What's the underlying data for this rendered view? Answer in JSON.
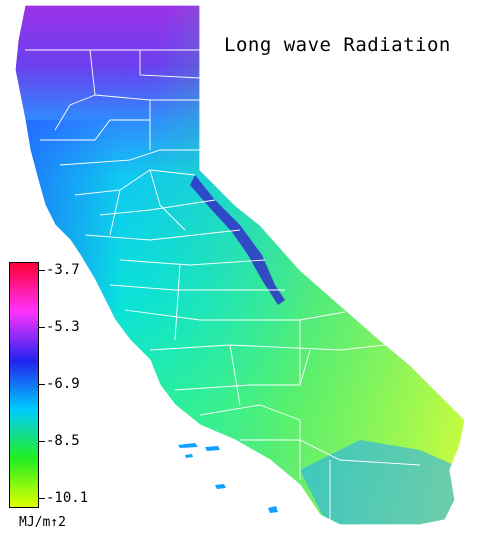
{
  "title": "Long wave Radiation",
  "legend": {
    "units": "MJ/m↑2",
    "ticks": [
      "-3.7",
      "-5.3",
      "-6.9",
      "-8.5",
      "-10.1"
    ],
    "colors": [
      "#ff0033",
      "#ff33ff",
      "#2222ee",
      "#00ccff",
      "#22ee22",
      "#ddff00"
    ]
  },
  "map": {
    "region": "California counties",
    "palette": {
      "north": "#8833ee",
      "northwest": "#6644ee",
      "central": "#00d8ee",
      "coast": "#2299ff",
      "sierra": "#3333cc",
      "southeast": "#ccf23a",
      "south": "#44f0a0",
      "boundary": "#ffffff"
    }
  }
}
